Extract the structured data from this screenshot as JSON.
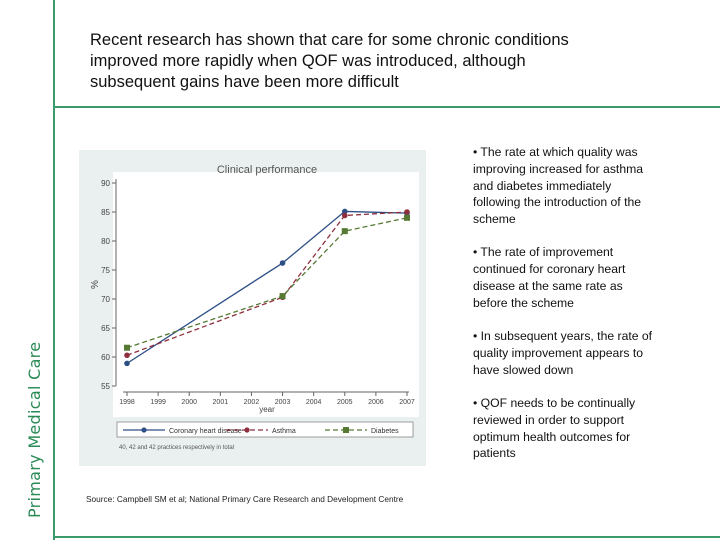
{
  "brand": "Primary Medical Care",
  "title_lines": [
    "Recent research has shown that care for some chronic conditions",
    "improved more rapidly when QOF was introduced, although",
    "subsequent gains have been more difficult"
  ],
  "bullets": [
    [
      "• The rate at which quality was",
      "improving increased for asthma",
      "and diabetes immediately",
      "following the introduction of the",
      "scheme"
    ],
    [
      "• The rate of improvement",
      "continued for coronary heart",
      "disease at the same rate as",
      "before the scheme"
    ],
    [
      "• In subsequent years, the rate of",
      "quality improvement appears to",
      "have slowed down"
    ],
    [
      "• QOF needs to be continually",
      "reviewed in order to support",
      "optimum health outcomes for",
      "patients"
    ]
  ],
  "source": "Source: Campbell SM et al; National Primary Care Research and Development Centre",
  "chart_data": {
    "type": "line",
    "title": "Clinical performance",
    "xlabel": "year",
    "ylabel": "%",
    "x": [
      1998,
      1999,
      2000,
      2001,
      2002,
      2003,
      2004,
      2005,
      2006,
      2007
    ],
    "xtick_labels": [
      "1998",
      "1999",
      "2000",
      "2001",
      "2002",
      "2003",
      "2004",
      "2005",
      "2006",
      "2007"
    ],
    "xlim": [
      1998,
      2007
    ],
    "ylim": [
      55,
      90
    ],
    "yticks": [
      55,
      60,
      65,
      70,
      75,
      80,
      85,
      90
    ],
    "grid": false,
    "legend_position": "bottom",
    "note": "40, 42 and 42 practices respectively in total",
    "series": [
      {
        "name": "Coronary heart disease",
        "x": [
          1998,
          2003,
          2005,
          2007
        ],
        "values": [
          58.9,
          76.2,
          85.1,
          84.8
        ],
        "color": "#2d4f86",
        "marker": "circle",
        "dash": "solid"
      },
      {
        "name": "Asthma",
        "x": [
          1998,
          2003,
          2005,
          2007
        ],
        "values": [
          60.3,
          70.3,
          84.4,
          85.0
        ],
        "color": "#8e2f3e",
        "marker": "circle",
        "dash": "dash"
      },
      {
        "name": "Diabetes",
        "x": [
          1998,
          2003,
          2005,
          2007
        ],
        "values": [
          61.6,
          70.5,
          81.7,
          84.0
        ],
        "color": "#567a34",
        "marker": "square",
        "dash": "dash"
      }
    ]
  }
}
